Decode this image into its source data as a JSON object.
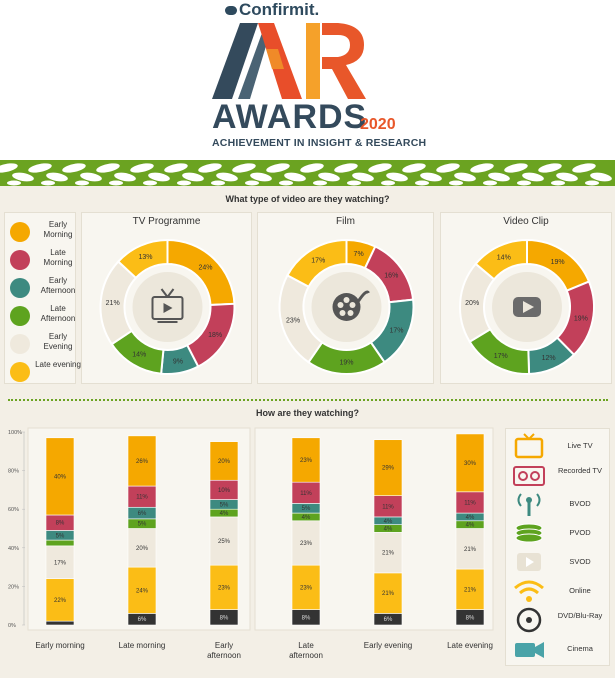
{
  "branding": {
    "company": "Confirmit.",
    "award_word": "AWARDS",
    "year": "2020",
    "tagline": "ACHIEVEMENT IN INSIGHT & RESEARCH",
    "logo_letters": "AIR",
    "colors": {
      "dark": "#344a5c",
      "orange": "#e8572a",
      "leaf": "#6ba321"
    }
  },
  "section1": {
    "title": "What type of video are they watching?"
  },
  "section2": {
    "title": "How are they watching?"
  },
  "legend": [
    {
      "label": "Early Morning",
      "color": "#f5a800"
    },
    {
      "label": "Late Morning",
      "color": "#c2405a"
    },
    {
      "label": "Early Afternoon",
      "color": "#3d8a80"
    },
    {
      "label": "Late Afternoon",
      "color": "#5ea31f"
    },
    {
      "label": "Early Evening",
      "color": "#efe9dd"
    },
    {
      "label": "Late evening",
      "color": "#fbbd16"
    }
  ],
  "devices": [
    {
      "label": "Live TV",
      "icon": "tv-icon",
      "color": "#f5a800"
    },
    {
      "label": "Recorded TV",
      "icon": "recorder-icon",
      "color": "#c2405a"
    },
    {
      "label": "BVOD",
      "icon": "broadcast-icon",
      "color": "#3d8a80"
    },
    {
      "label": "PVOD",
      "icon": "coins-icon",
      "color": "#5ea31f"
    },
    {
      "label": "SVOD",
      "icon": "play-subscription-icon",
      "color": "#e8e2d4"
    },
    {
      "label": "Online",
      "icon": "wifi-icon",
      "color": "#fbbd16"
    },
    {
      "label": "DVD/Blu-Ray",
      "icon": "disc-icon",
      "color": "#333333"
    },
    {
      "label": "Cinema",
      "icon": "camera-icon",
      "color": "#4aa3a8"
    }
  ],
  "chart_data": [
    {
      "type": "pie",
      "title": "TV Programme",
      "center_icon": "tv-icon",
      "categories": [
        "Early Morning",
        "Late Morning",
        "Early Afternoon",
        "Late Afternoon",
        "Early Evening",
        "Late evening"
      ],
      "values": [
        24,
        18,
        9,
        14,
        21,
        13
      ],
      "value_labels": [
        "24%",
        "18%",
        "9%",
        "14%",
        "21%",
        "13%"
      ]
    },
    {
      "type": "pie",
      "title": "Film",
      "center_icon": "film-reel-icon",
      "categories": [
        "Early Morning",
        "Late Morning",
        "Early Afternoon",
        "Late Afternoon",
        "Early Evening",
        "Late evening"
      ],
      "values": [
        7,
        16,
        17,
        19,
        23,
        17
      ],
      "value_labels": [
        "7%",
        "16%",
        "17%",
        "19%",
        "23%",
        "17%"
      ]
    },
    {
      "type": "pie",
      "title": "Video Clip",
      "center_icon": "play-button-icon",
      "categories": [
        "Early Morning",
        "Late Morning",
        "Early Afternoon",
        "Late Afternoon",
        "Early Evening",
        "Late evening"
      ],
      "values": [
        19,
        19,
        12,
        17,
        20,
        14
      ],
      "value_labels": [
        "19%",
        "19%",
        "12%",
        "17%",
        "20%",
        "14%"
      ]
    },
    {
      "type": "bar",
      "stacked": true,
      "categories": [
        "Early morning",
        "Late morning",
        "Early afternoon",
        "Late afternoon",
        "Early evening",
        "Late evening"
      ],
      "ylim": [
        0,
        100
      ],
      "yticks": [
        "0%",
        "20%",
        "40%",
        "60%",
        "80%",
        "100%"
      ],
      "series": [
        {
          "name": "DVD/Blu-Ray",
          "color": "#333333",
          "values": [
            2,
            6,
            8,
            8,
            6,
            8
          ],
          "labels": [
            "",
            "6%",
            "8%",
            "8%",
            "6%",
            "8%"
          ]
        },
        {
          "name": "Online",
          "color": "#fbbd16",
          "values": [
            22,
            24,
            23,
            23,
            21,
            21
          ],
          "labels": [
            "22%",
            "24%",
            "23%",
            "23%",
            "21%",
            "21%"
          ]
        },
        {
          "name": "SVOD",
          "color": "#efe9dd",
          "values": [
            17,
            20,
            25,
            23,
            21,
            21
          ],
          "labels": [
            "17%",
            "20%",
            "25%",
            "23%",
            "21%",
            "21%"
          ]
        },
        {
          "name": "PVOD",
          "color": "#5ea31f",
          "values": [
            3,
            5,
            4,
            4,
            4,
            4
          ],
          "labels": [
            "",
            "5%",
            "4%",
            "4%",
            "4%",
            "4%"
          ]
        },
        {
          "name": "BVOD",
          "color": "#3d8a80",
          "values": [
            5,
            6,
            5,
            5,
            4,
            4
          ],
          "labels": [
            "5%",
            "6%",
            "5%",
            "5%",
            "4%",
            "4%"
          ]
        },
        {
          "name": "Recorded TV",
          "color": "#c2405a",
          "values": [
            8,
            11,
            10,
            11,
            11,
            11
          ],
          "labels": [
            "8%",
            "11%",
            "10%",
            "11%",
            "11%",
            "11%"
          ]
        },
        {
          "name": "Live TV",
          "color": "#f5a800",
          "values": [
            40,
            26,
            20,
            23,
            29,
            30
          ],
          "labels": [
            "40%",
            "26%",
            "20%",
            "23%",
            "29%",
            "30%"
          ]
        }
      ]
    }
  ]
}
